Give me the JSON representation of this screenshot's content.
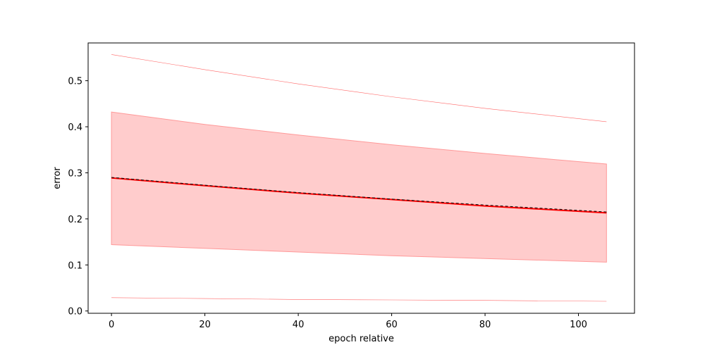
{
  "chart_data": {
    "type": "line",
    "xlabel": "epoch relative",
    "ylabel": "error",
    "xlim": [
      -5,
      112
    ],
    "ylim": [
      -0.005,
      0.582
    ],
    "grid": false,
    "x_ticks": [
      0,
      20,
      40,
      60,
      80,
      100
    ],
    "x_tick_labels": [
      "0",
      "20",
      "40",
      "60",
      "80",
      "100"
    ],
    "y_ticks": [
      0.0,
      0.1,
      0.2,
      0.3,
      0.4,
      0.5
    ],
    "y_tick_labels": [
      "0.0",
      "0.1",
      "0.2",
      "0.3",
      "0.4",
      "0.5"
    ],
    "x": [
      0,
      20,
      40,
      60,
      80,
      106
    ],
    "series": [
      {
        "role": "mean",
        "style": "solid",
        "color": "#ff0000",
        "values": [
          0.289,
          0.272,
          0.256,
          0.242,
          0.228,
          0.213
        ]
      },
      {
        "role": "median",
        "style": "dashed",
        "color": "#000000",
        "values": [
          0.29,
          0.273,
          0.257,
          0.243,
          0.23,
          0.215
        ]
      },
      {
        "role": "max",
        "style": "thin",
        "color": "#ff6666",
        "values": [
          0.557,
          0.524,
          0.493,
          0.465,
          0.44,
          0.411
        ]
      },
      {
        "role": "min",
        "style": "thin",
        "color": "#ff6666",
        "values": [
          0.029,
          0.027,
          0.025,
          0.024,
          0.023,
          0.021
        ]
      }
    ],
    "band": {
      "color": "#ffcccc",
      "edge_color": "#ff9999",
      "upper": [
        0.432,
        0.405,
        0.382,
        0.361,
        0.342,
        0.319
      ],
      "lower": [
        0.144,
        0.136,
        0.128,
        0.12,
        0.114,
        0.106
      ]
    }
  }
}
